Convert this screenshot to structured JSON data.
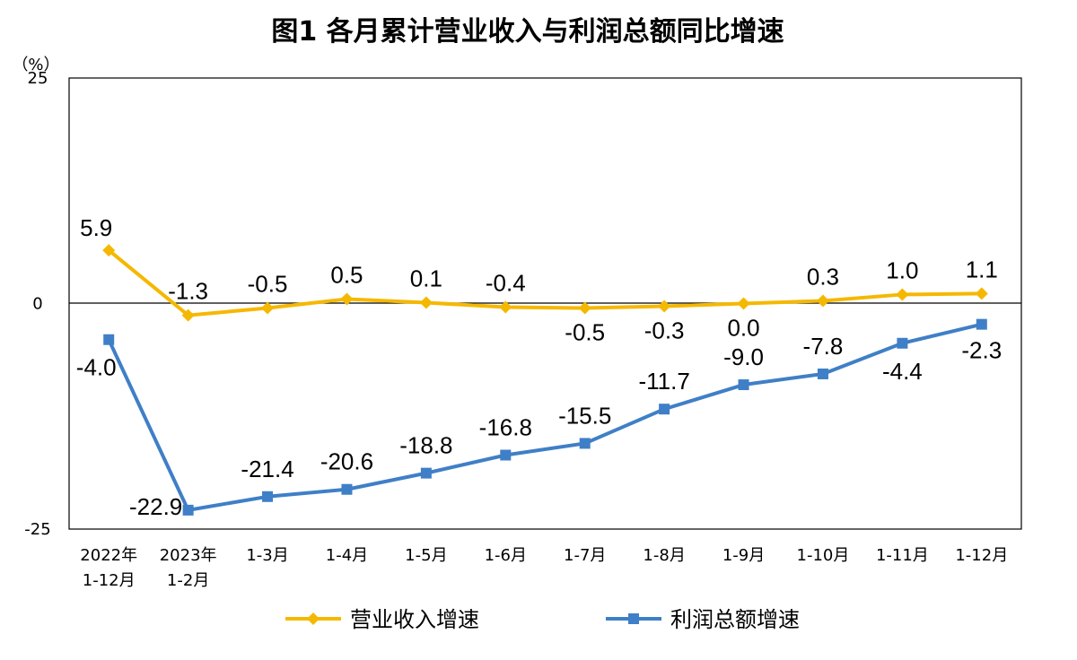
{
  "chart_data": {
    "type": "line",
    "title": "图1  各月累计营业收入与利润总额同比增速",
    "ylabel": "（%）",
    "ylim": [
      -25,
      25
    ],
    "yticks": [
      "25",
      "0",
      "-25"
    ],
    "categories": [
      [
        "2022年",
        "1-12月"
      ],
      [
        "2023年",
        "1-2月"
      ],
      [
        "1-3月"
      ],
      [
        "1-4月"
      ],
      [
        "1-5月"
      ],
      [
        "1-6月"
      ],
      [
        "1-7月"
      ],
      [
        "1-8月"
      ],
      [
        "1-9月"
      ],
      [
        "1-10月"
      ],
      [
        "1-11月"
      ],
      [
        "1-12月"
      ]
    ],
    "series": [
      {
        "name": "营业收入增速",
        "color": "#F5B800",
        "marker": "diamond",
        "values": [
          5.9,
          -1.3,
          -0.5,
          0.5,
          0.1,
          -0.4,
          -0.5,
          -0.3,
          0.0,
          0.3,
          1.0,
          1.1
        ],
        "labels": [
          "5.9",
          "-1.3",
          "-0.5",
          "0.5",
          "0.1",
          "-0.4",
          "-0.5",
          "-0.3",
          "0.0",
          "0.3",
          "1.0",
          "1.1"
        ]
      },
      {
        "name": "利润总额增速",
        "color": "#3F7FC7",
        "marker": "square",
        "values": [
          -4.0,
          -22.9,
          -21.4,
          -20.6,
          -18.8,
          -16.8,
          -15.5,
          -11.7,
          -9.0,
          -7.8,
          -4.4,
          -2.3
        ],
        "labels": [
          "-4.0",
          "-22.9",
          "-21.4",
          "-20.6",
          "-18.8",
          "-16.8",
          "-15.5",
          "-11.7",
          "-9.0",
          "-7.8",
          "-4.4",
          "-2.3"
        ]
      }
    ],
    "grid": false,
    "legend": "bottom"
  }
}
